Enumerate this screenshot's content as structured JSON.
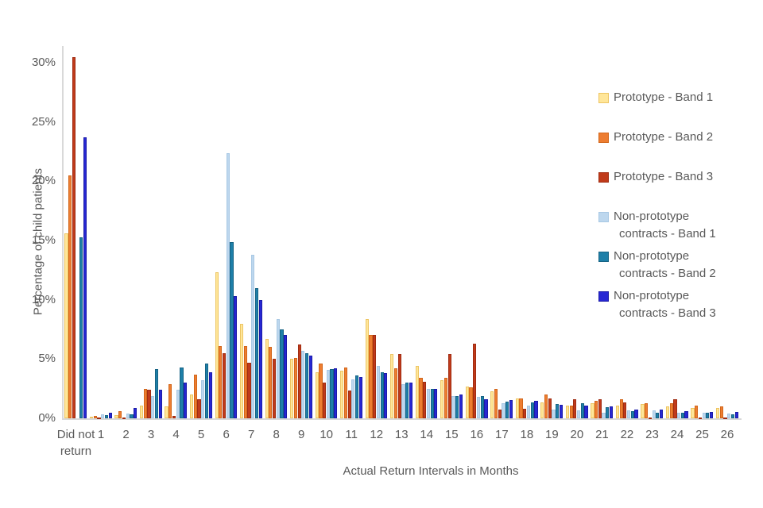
{
  "chart_data": {
    "type": "bar",
    "title": "",
    "xlabel": "Actual Return Intervals in Months",
    "ylabel": "Percentage of child patients",
    "ylim": [
      0,
      31
    ],
    "grid": false,
    "legend_position": "right",
    "yticks": [
      "0%",
      "5%",
      "10%",
      "15%",
      "20%",
      "25%",
      "30%"
    ],
    "categories": [
      "Did not return",
      "1",
      "2",
      "3",
      "4",
      "5",
      "6",
      "7",
      "8",
      "9",
      "10",
      "11",
      "12",
      "13",
      "14",
      "15",
      "16",
      "17",
      "18",
      "19",
      "20",
      "21",
      "22",
      "23",
      "24",
      "25",
      "26"
    ],
    "series": [
      {
        "name": "Prototype - Band 1",
        "legend_lines": [
          "Prototype - Band 1"
        ],
        "color": "#FFE699",
        "border": "#EDC563",
        "pattern": "dash",
        "values": [
          15.6,
          0.15,
          0.3,
          1.1,
          1.0,
          2.0,
          12.3,
          8.0,
          6.7,
          5.0,
          3.9,
          4.0,
          8.4,
          5.4,
          4.4,
          3.2,
          2.65,
          2.3,
          1.7,
          1.35,
          1.05,
          1.25,
          1.1,
          1.2,
          1.0,
          0.85,
          0.85
        ]
      },
      {
        "name": "Prototype - Band 2",
        "legend_lines": [
          "Prototype - Band 2"
        ],
        "color": "#ED7D31",
        "border": "#D2661A",
        "pattern": "stripe",
        "values": [
          20.5,
          0.2,
          0.6,
          2.45,
          2.9,
          3.7,
          6.1,
          6.1,
          6.0,
          5.1,
          4.65,
          4.3,
          7.0,
          4.2,
          3.4,
          3.4,
          2.6,
          2.5,
          1.7,
          2.0,
          1.05,
          1.45,
          1.6,
          1.25,
          1.3,
          1.1,
          1.0
        ]
      },
      {
        "name": "Prototype - Band 3",
        "legend_lines": [
          "Prototype - Band 3"
        ],
        "color": "#C03A1A",
        "border": "#A02C12",
        "pattern": "dot",
        "values": [
          30.5,
          0.1,
          0.1,
          2.4,
          0.2,
          1.6,
          5.5,
          4.7,
          5.0,
          6.2,
          3.0,
          2.35,
          7.0,
          5.4,
          3.1,
          5.4,
          6.3,
          0.75,
          0.8,
          1.7,
          1.6,
          1.6,
          1.35,
          0.1,
          1.6,
          0.05,
          0.05
        ]
      },
      {
        "name": "Non-prototype contracts - Band 1",
        "legend_lines": [
          "Non-prototype",
          "contracts - Band 1"
        ],
        "color": "#BDD7EE",
        "border": "#A8C8E4",
        "pattern": "dot",
        "values": [
          0,
          0.35,
          0.4,
          1.9,
          2.4,
          3.2,
          22.4,
          13.8,
          8.4,
          5.7,
          4.1,
          3.3,
          4.4,
          2.9,
          2.5,
          1.85,
          1.8,
          1.3,
          1.05,
          0.75,
          0.7,
          0.45,
          0.65,
          0.65,
          0.5,
          0.45,
          0.4
        ]
      },
      {
        "name": "Non-prototype contracts - Band 2",
        "legend_lines": [
          "Non-prototype",
          "contracts - Band 2"
        ],
        "color": "#1E7FA8",
        "border": "#166384",
        "pattern": "stripe",
        "values": [
          15.3,
          0.3,
          0.35,
          4.15,
          4.3,
          4.6,
          14.9,
          11.0,
          7.5,
          5.5,
          4.15,
          3.6,
          3.9,
          3.0,
          2.5,
          1.9,
          1.9,
          1.4,
          1.35,
          1.2,
          1.25,
          0.95,
          0.6,
          0.5,
          0.45,
          0.5,
          0.35
        ]
      },
      {
        "name": "Non-prototype contracts - Band 3",
        "legend_lines": [
          "Non-prototype",
          "contracts - Band 3"
        ],
        "color": "#2727D3",
        "border": "#1B1BA8",
        "pattern": "dot",
        "values": [
          23.7,
          0.5,
          0.85,
          2.4,
          3.0,
          3.9,
          10.3,
          10.0,
          7.0,
          5.3,
          4.25,
          3.5,
          3.8,
          3.0,
          2.5,
          2.0,
          1.6,
          1.55,
          1.45,
          1.15,
          1.1,
          1.0,
          0.75,
          0.75,
          0.6,
          0.55,
          0.55
        ]
      }
    ]
  }
}
